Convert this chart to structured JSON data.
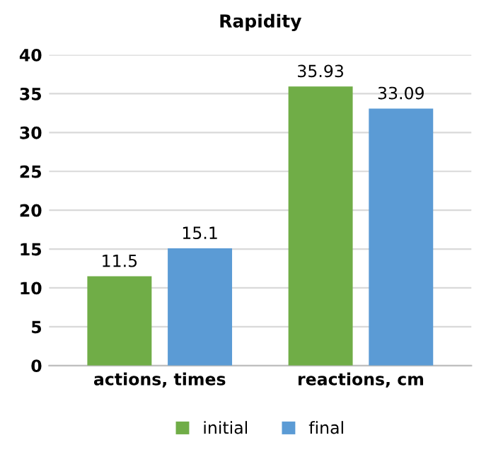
{
  "chart_data": {
    "type": "bar",
    "title": "Rapidity",
    "categories": [
      "actions, times",
      "reactions, cm"
    ],
    "series": [
      {
        "name": "initial",
        "color": "#70ad47",
        "values": [
          11.5,
          35.93
        ]
      },
      {
        "name": "final",
        "color": "#5b9bd5",
        "values": [
          15.1,
          33.09
        ]
      }
    ],
    "ylim": [
      0,
      40
    ],
    "yticks": [
      0,
      5,
      10,
      15,
      20,
      25,
      30,
      35,
      40
    ],
    "grid": "y",
    "legend": "bottom",
    "data_labels": true
  }
}
